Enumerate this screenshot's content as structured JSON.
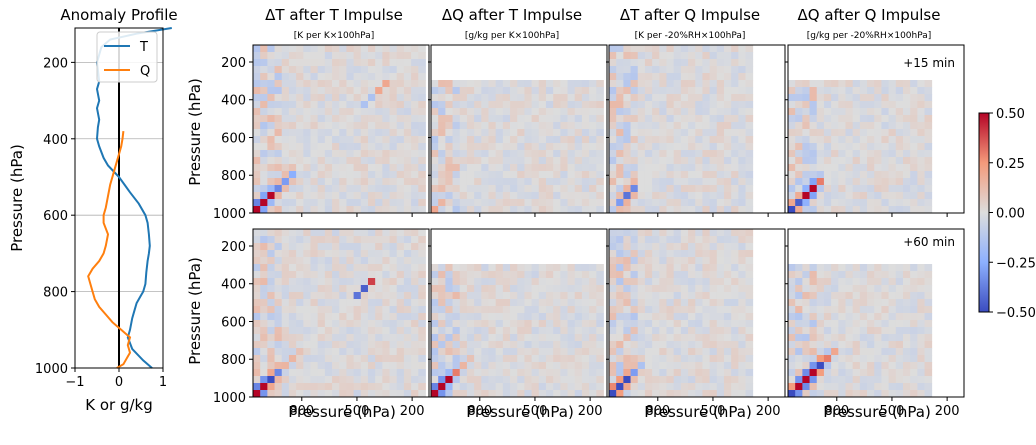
{
  "profile": {
    "title": "Anomaly Profile",
    "xlabel": "K or g/kg",
    "ylabel": "Pressure (hPa)",
    "xlim": [
      -1,
      1
    ],
    "ylim": [
      1000,
      110
    ],
    "xticks": [
      "−1",
      "0",
      "1"
    ],
    "yticks": [
      "200",
      "400",
      "600",
      "800",
      "1000"
    ],
    "legend": [
      {
        "name": "T",
        "color": "#1f77b4"
      },
      {
        "name": "Q",
        "color": "#ff7f0e"
      }
    ]
  },
  "panels": {
    "titles": [
      "ΔT after T Impulse",
      "ΔQ after T Impulse",
      "ΔT after Q Impulse",
      "ΔQ after Q Impulse"
    ],
    "subtitles": [
      "[K per K×100hPa]",
      "[g/kg per K×100hPa]",
      "[K per -20%RH×100hPa]",
      "[g/kg per -20%RH×100hPa]"
    ],
    "row_labels": [
      "+15 min",
      "+60 min"
    ],
    "xlabel": "Pressure (hPa)",
    "ylabel": "Pressure (hPa)",
    "xticks": [
      "800",
      "500",
      "200"
    ],
    "yticks": [
      "200",
      "400",
      "600",
      "800",
      "1000"
    ]
  },
  "colorbar": {
    "ticks": [
      "0.50",
      "0.25",
      "0.00",
      "−0.25",
      "−0.50"
    ],
    "range": [
      -0.5,
      0.5
    ],
    "colormap": "coolwarm"
  },
  "chart_data": {
    "type": "heatmap",
    "axes_range_hPa": [
      1000,
      100
    ],
    "color_range": [
      -0.5,
      0.5
    ],
    "mask_below_hPa": {
      "dQ_panels": 350,
      "Q_impulse_columns_stop_hPa": 250
    },
    "profile_series": [
      {
        "name": "T",
        "pressure": [
          1000,
          980,
          950,
          920,
          900,
          870,
          850,
          830,
          810,
          800,
          780,
          750,
          720,
          700,
          680,
          650,
          620,
          600,
          570,
          540,
          500,
          470,
          450,
          420,
          400,
          370,
          350,
          320,
          300,
          270,
          250,
          220,
          200,
          180,
          160,
          140,
          125,
          110
        ],
        "values": [
          0.75,
          0.55,
          0.3,
          0.2,
          0.25,
          0.3,
          0.35,
          0.4,
          0.5,
          0.55,
          0.6,
          0.62,
          0.65,
          0.68,
          0.7,
          0.68,
          0.65,
          0.6,
          0.45,
          0.25,
          0.0,
          -0.25,
          -0.35,
          -0.45,
          -0.5,
          -0.48,
          -0.45,
          -0.5,
          -0.45,
          -0.5,
          -0.45,
          -0.48,
          -0.5,
          -0.45,
          -0.4,
          -0.2,
          0.4,
          1.2
        ]
      },
      {
        "name": "Q",
        "pressure": [
          1000,
          990,
          970,
          960,
          940,
          920,
          900,
          880,
          860,
          840,
          820,
          800,
          780,
          760,
          740,
          720,
          700,
          680,
          650,
          620,
          600,
          580,
          550,
          520,
          500,
          480,
          460,
          440,
          420,
          400,
          380
        ],
        "values": [
          -0.05,
          0.1,
          0.2,
          0.25,
          0.2,
          0.25,
          0.05,
          -0.15,
          -0.3,
          -0.45,
          -0.55,
          -0.6,
          -0.65,
          -0.7,
          -0.6,
          -0.45,
          -0.35,
          -0.3,
          -0.25,
          -0.35,
          -0.35,
          -0.3,
          -0.25,
          -0.2,
          -0.15,
          -0.1,
          -0.05,
          0.0,
          0.05,
          0.08,
          0.1
        ]
      }
    ],
    "matrices": [
      {
        "row": "+15 min",
        "panel": "ΔT after T Impulse",
        "pattern": "diagonal",
        "diag": [
          0.9,
          0.7,
          0.5,
          -0.35,
          -0.3,
          -0.25,
          0.0,
          0.0,
          0.0,
          0.0,
          0.0,
          0.0,
          0.0,
          0.0,
          0.0,
          -0.15,
          -0.15,
          0.2,
          0.2,
          0.0
        ]
      },
      {
        "row": "+15 min",
        "panel": "ΔQ after T Impulse",
        "pattern": "weak",
        "diag": [
          0.2,
          0.15,
          -0.1,
          0.05,
          0.0,
          0.0,
          0.0,
          0.0,
          0.0,
          0.0,
          0.0,
          0.0,
          0.0,
          0.0,
          0.0,
          0.0,
          0.0,
          0.0,
          0.0,
          0.0
        ]
      },
      {
        "row": "+15 min",
        "panel": "ΔT after Q Impulse",
        "pattern": "diagonal",
        "diag": [
          -0.1,
          -0.3,
          -0.4,
          -0.35,
          0.0,
          0.0,
          0.0,
          0.0,
          0.0,
          0.0,
          0.0,
          0.0,
          0.0,
          0.0,
          0.0,
          0.0,
          0.0,
          0.0,
          0.0,
          0.0
        ]
      },
      {
        "row": "+15 min",
        "panel": "ΔQ after Q Impulse",
        "pattern": "diagonal",
        "diag": [
          -0.5,
          -0.45,
          0.6,
          0.7,
          0.3,
          0.0,
          0.0,
          0.0,
          0.0,
          0.0,
          0.0,
          0.0,
          0.0,
          0.0,
          0.0,
          0.0,
          0.0,
          0.0,
          0.0,
          0.0
        ]
      },
      {
        "row": "+60 min",
        "panel": "ΔT after T Impulse",
        "pattern": "diagonal",
        "diag": [
          0.9,
          0.8,
          -0.5,
          -0.35,
          0.15,
          0.15,
          0.1,
          0.0,
          0.0,
          0.0,
          0.0,
          0.0,
          0.0,
          0.0,
          -0.4,
          -0.45,
          0.4,
          0.0,
          0.0,
          0.0
        ]
      },
      {
        "row": "+60 min",
        "panel": "ΔQ after T Impulse",
        "pattern": "diagonal",
        "diag": [
          0.9,
          0.8,
          0.5,
          0.3,
          0.15,
          0.1,
          0.0,
          0.0,
          0.0,
          0.0,
          0.0,
          0.0,
          0.0,
          0.0,
          0.0,
          0.0,
          0.0,
          0.0,
          0.0,
          0.0
        ]
      },
      {
        "row": "+60 min",
        "panel": "ΔT after Q Impulse",
        "pattern": "diagonal",
        "diag": [
          -0.7,
          -0.6,
          -0.5,
          -0.3,
          -0.15,
          0.0,
          0.0,
          0.0,
          0.0,
          0.0,
          0.0,
          0.0,
          0.0,
          0.0,
          0.0,
          0.0,
          0.0,
          0.0,
          0.0,
          0.0
        ]
      },
      {
        "row": "+60 min",
        "panel": "ΔQ after Q Impulse",
        "pattern": "diagonal",
        "diag": [
          -0.6,
          0.8,
          0.85,
          0.8,
          -0.6,
          0.3,
          0.2,
          0.0,
          0.0,
          0.0,
          0.0,
          0.0,
          0.0,
          0.0,
          0.0,
          0.0,
          0.0,
          0.0,
          0.0,
          0.0
        ]
      }
    ]
  }
}
